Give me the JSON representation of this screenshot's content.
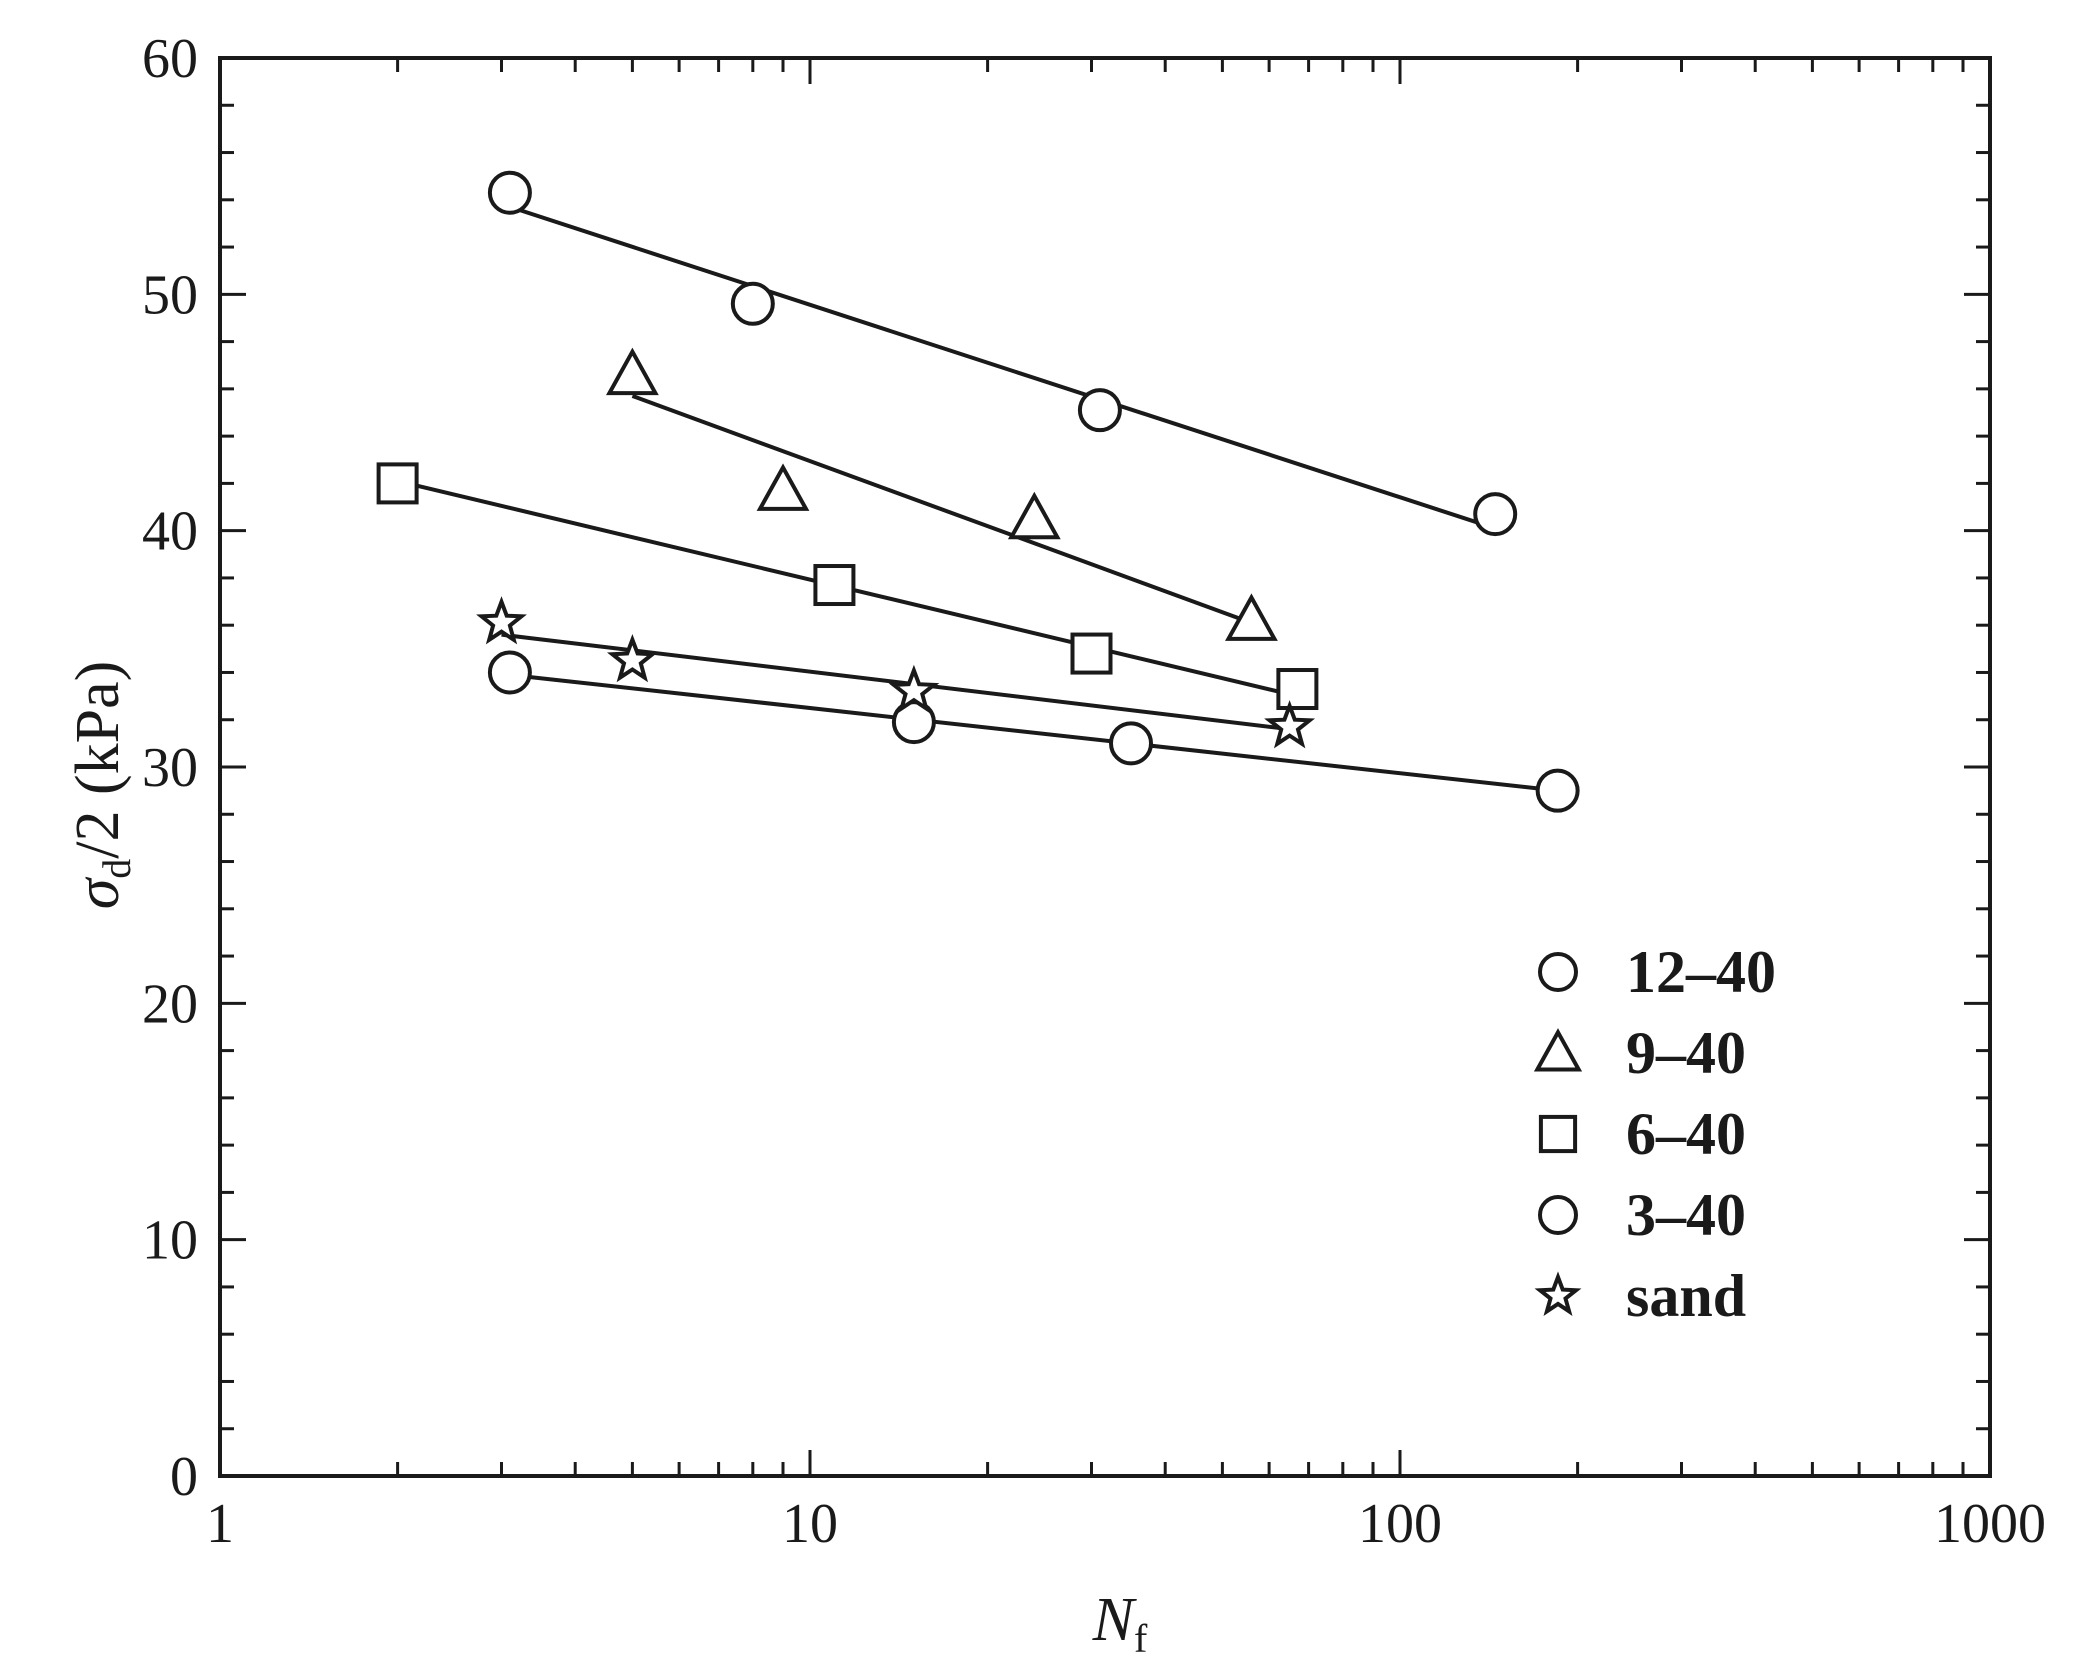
{
  "chart_data": {
    "type": "scatter",
    "title": "",
    "xlabel": {
      "main": "N",
      "sub": "f"
    },
    "ylabel": {
      "main": "σ",
      "sub": "d",
      "rest": "/2 (kPa)"
    },
    "x_scale": "log",
    "xlim": [
      1,
      1000
    ],
    "ylim": [
      0,
      60
    ],
    "x_ticks": [
      1,
      10,
      100,
      1000
    ],
    "x_tick_labels": [
      "1",
      "10",
      "100",
      "1000"
    ],
    "y_ticks": [
      0,
      10,
      20,
      30,
      40,
      50,
      60
    ],
    "y_tick_labels": [
      "0",
      "10",
      "20",
      "30",
      "40",
      "50",
      "60"
    ],
    "grid": false,
    "legend_position": "bottom-right",
    "series": [
      {
        "name": "12–40",
        "marker": "circle",
        "x": [
          3.1,
          8.0,
          31,
          145
        ],
        "y": [
          54.3,
          49.6,
          45.1,
          40.7
        ],
        "fit": {
          "x": [
            3.1,
            145
          ],
          "y": [
            53.7,
            40.1
          ]
        }
      },
      {
        "name": "9–40",
        "marker": "triangle",
        "x": [
          5,
          9,
          24,
          56
        ],
        "y": [
          46.6,
          41.7,
          40.5,
          36.2
        ],
        "fit": {
          "x": [
            5,
            56
          ],
          "y": [
            45.7,
            36.1
          ]
        }
      },
      {
        "name": "6–40",
        "marker": "square",
        "x": [
          2,
          11,
          30,
          67
        ],
        "y": [
          42.0,
          37.7,
          34.8,
          33.3
        ],
        "fit": {
          "x": [
            2,
            67
          ],
          "y": [
            42.1,
            33.0
          ]
        }
      },
      {
        "name": "3–40",
        "marker": "circle",
        "x": [
          3.1,
          15,
          35,
          185
        ],
        "y": [
          34.0,
          31.9,
          31.0,
          29.0
        ],
        "fit": {
          "x": [
            3.1,
            185
          ],
          "y": [
            33.9,
            29.0
          ]
        }
      },
      {
        "name": "sand",
        "marker": "star",
        "x": [
          3,
          5,
          15,
          65
        ],
        "y": [
          36.1,
          34.5,
          33.2,
          31.7
        ],
        "fit": {
          "x": [
            3,
            65
          ],
          "y": [
            35.6,
            31.6
          ]
        }
      }
    ]
  }
}
